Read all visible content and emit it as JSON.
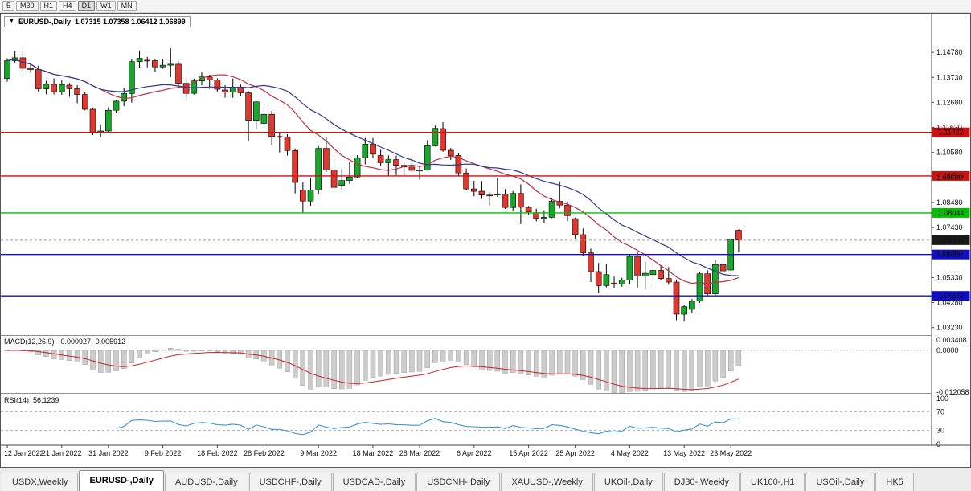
{
  "toolbar": {
    "buttons": [
      "5",
      "M30",
      "H1",
      "H4",
      "D1",
      "W1",
      "MN"
    ],
    "active": "D1"
  },
  "window": {
    "title_symbol": "EURUSD-,Daily",
    "title_ohlc": "1.07315 1.07358 1.06412 1.06899"
  },
  "chart_data": {
    "type": "candlestick",
    "symbol": "EURUSD-,Daily",
    "timeframe": "Daily",
    "ohlc": [
      [
        1.1368,
        1.1453,
        1.1355,
        1.1443
      ],
      [
        1.1443,
        1.1482,
        1.1435,
        1.1455
      ],
      [
        1.1455,
        1.1483,
        1.1399,
        1.1411
      ],
      [
        1.1411,
        1.1435,
        1.1392,
        1.1406
      ],
      [
        1.1406,
        1.1422,
        1.1313,
        1.1325
      ],
      [
        1.1325,
        1.1358,
        1.1302,
        1.1344
      ],
      [
        1.1344,
        1.1369,
        1.1301,
        1.1313
      ],
      [
        1.1313,
        1.136,
        1.13,
        1.1343
      ],
      [
        1.134,
        1.1349,
        1.1291,
        1.1325
      ],
      [
        1.1325,
        1.134,
        1.1264,
        1.1301
      ],
      [
        1.1301,
        1.131,
        1.1235,
        1.1239
      ],
      [
        1.1239,
        1.1245,
        1.1131,
        1.1144
      ],
      [
        1.1144,
        1.1176,
        1.1121,
        1.1148
      ],
      [
        1.1148,
        1.1248,
        1.1141,
        1.1235
      ],
      [
        1.1235,
        1.1279,
        1.1222,
        1.1273
      ],
      [
        1.1273,
        1.133,
        1.1252,
        1.1305
      ],
      [
        1.1305,
        1.1451,
        1.1267,
        1.1439
      ],
      [
        1.1439,
        1.1483,
        1.1411,
        1.1453
      ],
      [
        1.1445,
        1.1459,
        1.1415,
        1.1443
      ],
      [
        1.1443,
        1.1448,
        1.1396,
        1.1417
      ],
      [
        1.1417,
        1.1448,
        1.1409,
        1.1424
      ],
      [
        1.1424,
        1.1495,
        1.1374,
        1.1428
      ],
      [
        1.1428,
        1.144,
        1.133,
        1.1348
      ],
      [
        1.1348,
        1.1369,
        1.1278,
        1.1306
      ],
      [
        1.1306,
        1.1368,
        1.1301,
        1.1358
      ],
      [
        1.1358,
        1.1395,
        1.1339,
        1.1375
      ],
      [
        1.1375,
        1.1384,
        1.1325,
        1.1362
      ],
      [
        1.1362,
        1.1369,
        1.1313,
        1.1323
      ],
      [
        1.132,
        1.134,
        1.1288,
        1.1311
      ],
      [
        1.1311,
        1.1368,
        1.1287,
        1.1328
      ],
      [
        1.1328,
        1.1343,
        1.1294,
        1.1308
      ],
      [
        1.1308,
        1.1316,
        1.1106,
        1.1193
      ],
      [
        1.1193,
        1.1274,
        1.1158,
        1.127
      ],
      [
        1.118,
        1.1247,
        1.116,
        1.1218
      ],
      [
        1.1218,
        1.1233,
        1.109,
        1.1125
      ],
      [
        1.1125,
        1.1145,
        1.1058,
        1.1122
      ],
      [
        1.1122,
        1.1134,
        1.1045,
        1.1066
      ],
      [
        1.1066,
        1.1075,
        1.0886,
        1.0932
      ],
      [
        1.09,
        1.0932,
        1.0806,
        1.0854
      ],
      [
        1.0854,
        1.095,
        1.0834,
        1.0901
      ],
      [
        1.0901,
        1.1085,
        1.0884,
        1.1075
      ],
      [
        1.1075,
        1.1121,
        1.0976,
        1.0985
      ],
      [
        1.0985,
        1.1043,
        1.0901,
        1.0911
      ],
      [
        1.092,
        1.0991,
        1.0902,
        1.094
      ],
      [
        1.094,
        1.102,
        1.0926,
        1.0955
      ],
      [
        1.0955,
        1.1047,
        1.095,
        1.1036
      ],
      [
        1.1036,
        1.1119,
        1.1008,
        1.1093
      ],
      [
        1.1093,
        1.1119,
        1.1035,
        1.1051
      ],
      [
        1.1045,
        1.1069,
        1.1002,
        1.1015
      ],
      [
        1.1015,
        1.1046,
        1.0961,
        1.1028
      ],
      [
        1.1028,
        1.1044,
        1.0963,
        1.1004
      ],
      [
        1.1004,
        1.1014,
        1.096,
        1.0997
      ],
      [
        1.0997,
        1.1039,
        1.0979,
        1.0983
      ],
      [
        1.098,
        1.1,
        1.0944,
        1.0984
      ],
      [
        1.0984,
        1.111,
        1.0982,
        1.1086
      ],
      [
        1.1086,
        1.1171,
        1.1083,
        1.1159
      ],
      [
        1.1158,
        1.1185,
        1.1061,
        1.1067
      ],
      [
        1.1067,
        1.1077,
        1.1027,
        1.1045
      ],
      [
        1.1045,
        1.1055,
        1.096,
        1.0972
      ],
      [
        1.0972,
        1.0991,
        1.0898,
        1.0905
      ],
      [
        1.0905,
        1.0939,
        1.0874,
        1.0895
      ],
      [
        1.0895,
        1.0938,
        1.0863,
        1.0879
      ],
      [
        1.0879,
        1.089,
        1.0836,
        1.0876
      ],
      [
        1.088,
        1.095,
        1.0872,
        1.0883
      ],
      [
        1.0883,
        1.0905,
        1.0821,
        1.0827
      ],
      [
        1.0827,
        1.0896,
        1.081,
        1.0886
      ],
      [
        1.0886,
        1.0924,
        1.0757,
        1.0828
      ],
      [
        1.0828,
        1.0833,
        1.0796,
        1.0808
      ],
      [
        1.0805,
        1.0822,
        1.0769,
        1.0781
      ],
      [
        1.0781,
        1.0815,
        1.0761,
        1.0786
      ],
      [
        1.0786,
        1.0867,
        1.0783,
        1.0853
      ],
      [
        1.0853,
        1.0937,
        1.0824,
        1.0837
      ],
      [
        1.0837,
        1.0852,
        1.077,
        1.0793
      ],
      [
        1.078,
        1.0785,
        1.0697,
        1.0713
      ],
      [
        1.0713,
        1.0739,
        1.0625,
        1.0637
      ],
      [
        1.0637,
        1.0655,
        1.0514,
        1.0558
      ],
      [
        1.0558,
        1.0594,
        1.047,
        1.0499
      ],
      [
        1.0499,
        1.0592,
        1.0492,
        1.0545
      ],
      [
        1.051,
        1.0537,
        1.0491,
        1.0505
      ],
      [
        1.0505,
        1.0532,
        1.0495,
        1.0522
      ],
      [
        1.0522,
        1.063,
        1.0507,
        1.0622
      ],
      [
        1.0622,
        1.0642,
        1.0492,
        1.054
      ],
      [
        1.054,
        1.0599,
        1.0483,
        1.0551
      ],
      [
        1.0545,
        1.0593,
        1.0495,
        1.0563
      ],
      [
        1.0563,
        1.0585,
        1.0524,
        1.0529
      ],
      [
        1.0529,
        1.0577,
        1.0503,
        1.0514
      ],
      [
        1.0514,
        1.0525,
        1.0354,
        1.0379
      ],
      [
        1.0379,
        1.042,
        1.0348,
        1.0411
      ],
      [
        1.04,
        1.0443,
        1.0385,
        1.0434
      ],
      [
        1.0434,
        1.0556,
        1.0427,
        1.0549
      ],
      [
        1.0549,
        1.0564,
        1.0459,
        1.0465
      ],
      [
        1.0465,
        1.0607,
        1.0455,
        1.0588
      ],
      [
        1.0588,
        1.0604,
        1.0533,
        1.0561
      ],
      [
        1.0565,
        1.0697,
        1.0561,
        1.0693
      ],
      [
        1.07315,
        1.07358,
        1.06412,
        1.06899
      ]
    ],
    "x_labels": [
      {
        "index": 0,
        "text": "12 Jan 2022"
      },
      {
        "index": 7,
        "text": "21 Jan 2022"
      },
      {
        "index": 13,
        "text": "31 Jan 2022"
      },
      {
        "index": 20,
        "text": "9 Feb 2022"
      },
      {
        "index": 27,
        "text": "18 Feb 2022"
      },
      {
        "index": 33,
        "text": "28 Feb 2022"
      },
      {
        "index": 40,
        "text": "9 Mar 2022"
      },
      {
        "index": 47,
        "text": "18 Mar 2022"
      },
      {
        "index": 53,
        "text": "28 Mar 2022"
      },
      {
        "index": 60,
        "text": "6 Apr 2022"
      },
      {
        "index": 67,
        "text": "15 Apr 2022"
      },
      {
        "index": 73,
        "text": "25 Apr 2022"
      },
      {
        "index": 80,
        "text": "4 May 2022"
      },
      {
        "index": 87,
        "text": "13 May 2022"
      },
      {
        "index": 93,
        "text": "23 May 2022"
      }
    ],
    "y_axis_labels": [
      "1.14780",
      "1.13730",
      "1.12680",
      "1.11630",
      "1.10580",
      "1.09530",
      "1.08480",
      "1.07430",
      "1.06380",
      "1.05330",
      "1.04280",
      "1.03230"
    ],
    "price_max": 1.162,
    "price_min": 1.0295,
    "hlines": [
      {
        "value": 1.11422,
        "label": "1.11422",
        "color": "#d10f0f"
      },
      {
        "value": 1.09596,
        "label": "1.09596",
        "color": "#d10f0f"
      },
      {
        "value": 1.08044,
        "label": "1.08044",
        "color": "#00bf00"
      },
      {
        "value": 1.06297,
        "label": "1.06297",
        "color": "#0f0fc8"
      },
      {
        "value": 1.04562,
        "label": "1.04562",
        "color": "#0f0fc8"
      }
    ],
    "current_price": 1.06899,
    "current_price_label": "1.06899",
    "moving_averages": [
      {
        "type": "sma",
        "period": 13,
        "color": "#bb3344"
      },
      {
        "type": "sma",
        "period": 21,
        "color": "#2c3a94"
      }
    ],
    "macd": {
      "label": "MACD(12,26,9)",
      "values_text": "-0.000927 -0.005912",
      "fast": 12,
      "slow": 26,
      "signal": 9,
      "axis_max": "0.003408",
      "axis_zero": "0.0000",
      "axis_min": "-0.012058",
      "scale_max": 0.003408,
      "scale_min": -0.012058
    },
    "rsi": {
      "label": "RSI(14)",
      "value_text": "56.1239",
      "period": 14,
      "axis_top": "100",
      "axis_high": "70",
      "axis_low": "30",
      "axis_bottom": "0",
      "levels": [
        70,
        30
      ]
    }
  },
  "colors": {
    "candle_up": "#17a82b",
    "candle_down": "#e0382e",
    "candle_outline": "#000000",
    "price_label_bg": "#1a1a1a",
    "macd_hist": "#cccccc",
    "macd_hist_stroke": "#8f8f8f",
    "macd_signal": "#cc2222",
    "rsi_line": "#3c96d2",
    "level_dash": "#aaaaaa",
    "axis_line": "#444444",
    "bid_line": "#999999"
  },
  "tabs": {
    "items": [
      {
        "label": "USDX,Weekly",
        "active": false
      },
      {
        "label": "EURUSD-,Daily",
        "active": true
      },
      {
        "label": "AUDUSD-,Daily",
        "active": false
      },
      {
        "label": "USDCHF-,Daily",
        "active": false
      },
      {
        "label": "USDCAD-,Daily",
        "active": false
      },
      {
        "label": "USDCNH-,Daily",
        "active": false
      },
      {
        "label": "XAUUSD-,Weekly",
        "active": false
      },
      {
        "label": "UKOil-,Daily",
        "active": false
      },
      {
        "label": "DJ30-,Weekly",
        "active": false
      },
      {
        "label": "UK100-,H1",
        "active": false
      },
      {
        "label": "USOil-,Daily",
        "active": false
      },
      {
        "label": "HK5",
        "active": false
      }
    ]
  }
}
